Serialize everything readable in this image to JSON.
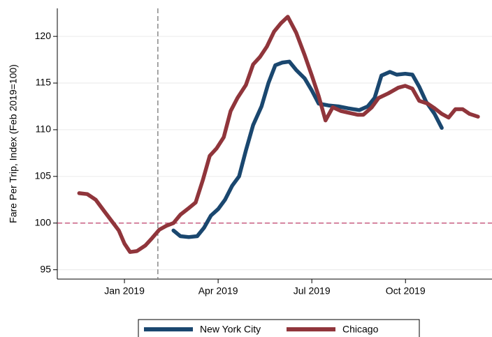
{
  "chart_data": {
    "type": "line",
    "ylabel": "Fare Per Trip, Index (Feb 2019=100)",
    "xlim": [
      -2.15,
      11.77
    ],
    "ylim": [
      94,
      123
    ],
    "xticks": [
      {
        "value": 0,
        "label": "Jan 2019"
      },
      {
        "value": 3,
        "label": "Apr 2019"
      },
      {
        "value": 6,
        "label": "Jul 2019"
      },
      {
        "value": 9,
        "label": "Oct 2019"
      }
    ],
    "yticks": [
      95,
      100,
      105,
      110,
      115,
      120
    ],
    "grid": true,
    "vline": 1.07,
    "vline_color": "#777777",
    "hline": 100,
    "hline_color": "#c0406a",
    "legend": "bottom",
    "series": [
      {
        "name": "New York City",
        "color": "#1a476f",
        "x": [
          1.57,
          1.79,
          2.06,
          2.33,
          2.55,
          2.77,
          3.0,
          3.22,
          3.45,
          3.67,
          3.89,
          4.12,
          4.39,
          4.61,
          4.83,
          5.06,
          5.28,
          5.5,
          5.77,
          6.0,
          6.22,
          6.53,
          6.85,
          7.16,
          7.52,
          7.79,
          8.01,
          8.23,
          8.5,
          8.72,
          8.99,
          9.22,
          9.44,
          9.66,
          9.93,
          10.16
        ],
        "values": [
          99.2,
          98.6,
          98.5,
          98.6,
          99.5,
          100.8,
          101.5,
          102.5,
          104.0,
          105.0,
          107.8,
          110.5,
          112.5,
          115.0,
          116.9,
          117.2,
          117.3,
          116.4,
          115.5,
          114.2,
          112.8,
          112.6,
          112.5,
          112.3,
          112.1,
          112.5,
          113.4,
          115.8,
          116.2,
          115.9,
          116.0,
          115.9,
          114.6,
          113.0,
          111.7,
          110.2
        ]
      },
      {
        "name": "Chicago",
        "color": "#90353b",
        "x": [
          -1.45,
          -1.19,
          -0.92,
          -0.63,
          -0.36,
          -0.18,
          0,
          0.18,
          0.4,
          0.67,
          0.89,
          1.12,
          1.34,
          1.57,
          1.79,
          2.06,
          2.28,
          2.51,
          2.73,
          2.95,
          3.18,
          3.4,
          3.62,
          3.89,
          4.12,
          4.34,
          4.56,
          4.79,
          5.01,
          5.23,
          5.5,
          5.77,
          6.0,
          6.22,
          6.44,
          6.67,
          6.94,
          7.2,
          7.47,
          7.65,
          7.92,
          8.14,
          8.45,
          8.77,
          8.99,
          9.22,
          9.44,
          9.71,
          9.93,
          10.16,
          10.38,
          10.6,
          10.83,
          11.05,
          11.32
        ],
        "values": [
          103.2,
          103.1,
          102.5,
          101.2,
          100.0,
          99.2,
          97.8,
          96.9,
          97.0,
          97.6,
          98.4,
          99.3,
          99.7,
          100.0,
          100.9,
          101.6,
          102.2,
          104.6,
          107.2,
          108.0,
          109.2,
          112.0,
          113.4,
          114.8,
          117.0,
          117.8,
          118.9,
          120.5,
          121.4,
          122.1,
          120.4,
          118.0,
          115.8,
          113.6,
          111.0,
          112.4,
          112.0,
          111.8,
          111.6,
          111.6,
          112.4,
          113.4,
          113.9,
          114.5,
          114.7,
          114.4,
          113.1,
          112.8,
          112.3,
          111.7,
          111.3,
          112.2,
          112.2,
          111.7,
          111.4
        ]
      }
    ]
  }
}
